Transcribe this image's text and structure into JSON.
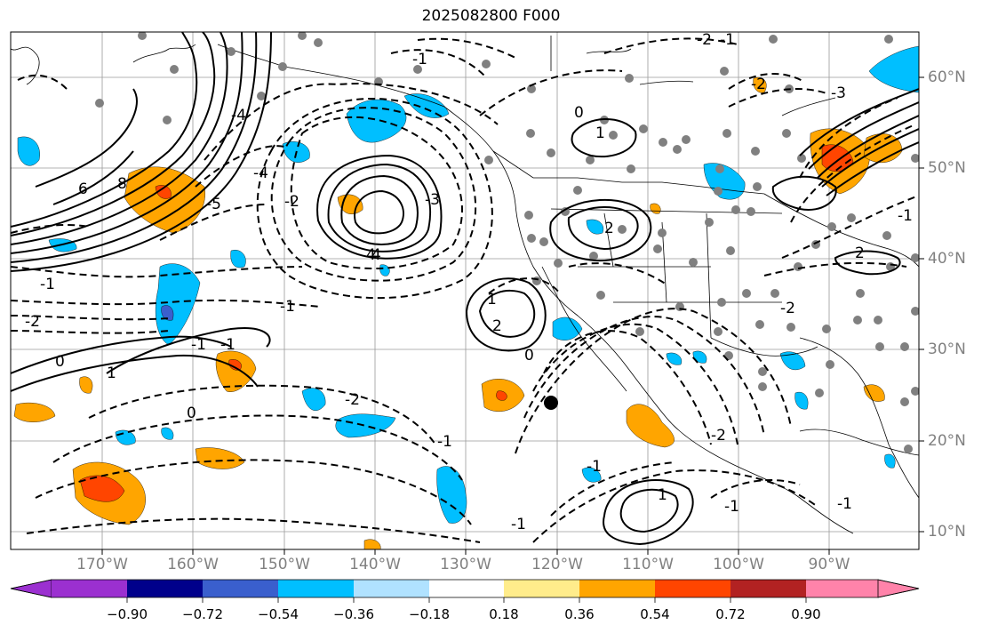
{
  "title": "2025082800 F000",
  "lon_labels": [
    "170°W",
    "160°W",
    "150°W",
    "140°W",
    "130°W",
    "120°W",
    "110°W",
    "100°W",
    "90°W"
  ],
  "lat_labels": [
    "60°N",
    "50°N",
    "40°N",
    "30°N",
    "20°N",
    "10°N"
  ],
  "contour_labels": [
    "-1",
    "-2",
    "-1",
    "1",
    "0",
    "1",
    "-1",
    "2",
    "-2",
    "0",
    "4",
    "-2",
    "-1",
    "0",
    "1",
    "-1",
    "2",
    "-2",
    "0",
    "-1",
    "-1",
    "2",
    "-3",
    "1",
    "-1",
    "-4",
    "-2",
    "-3",
    "-1",
    "8",
    "6",
    "4",
    "-2",
    "-4",
    "-5",
    "-1",
    "-2",
    "-1",
    "-1"
  ],
  "colorbar": {
    "ticks": [
      "−0.90",
      "−0.72",
      "−0.54",
      "−0.36",
      "−0.18",
      "0.18",
      "0.36",
      "0.54",
      "0.72",
      "0.90"
    ],
    "colors": [
      "#9b30d0",
      "#00008b",
      "#3a5fcd",
      "#00bfff",
      "#b0e2ff",
      "#ffffff",
      "#ffec8b",
      "#ffa500",
      "#ff4500",
      "#b22222",
      "#ff83aa"
    ]
  }
}
